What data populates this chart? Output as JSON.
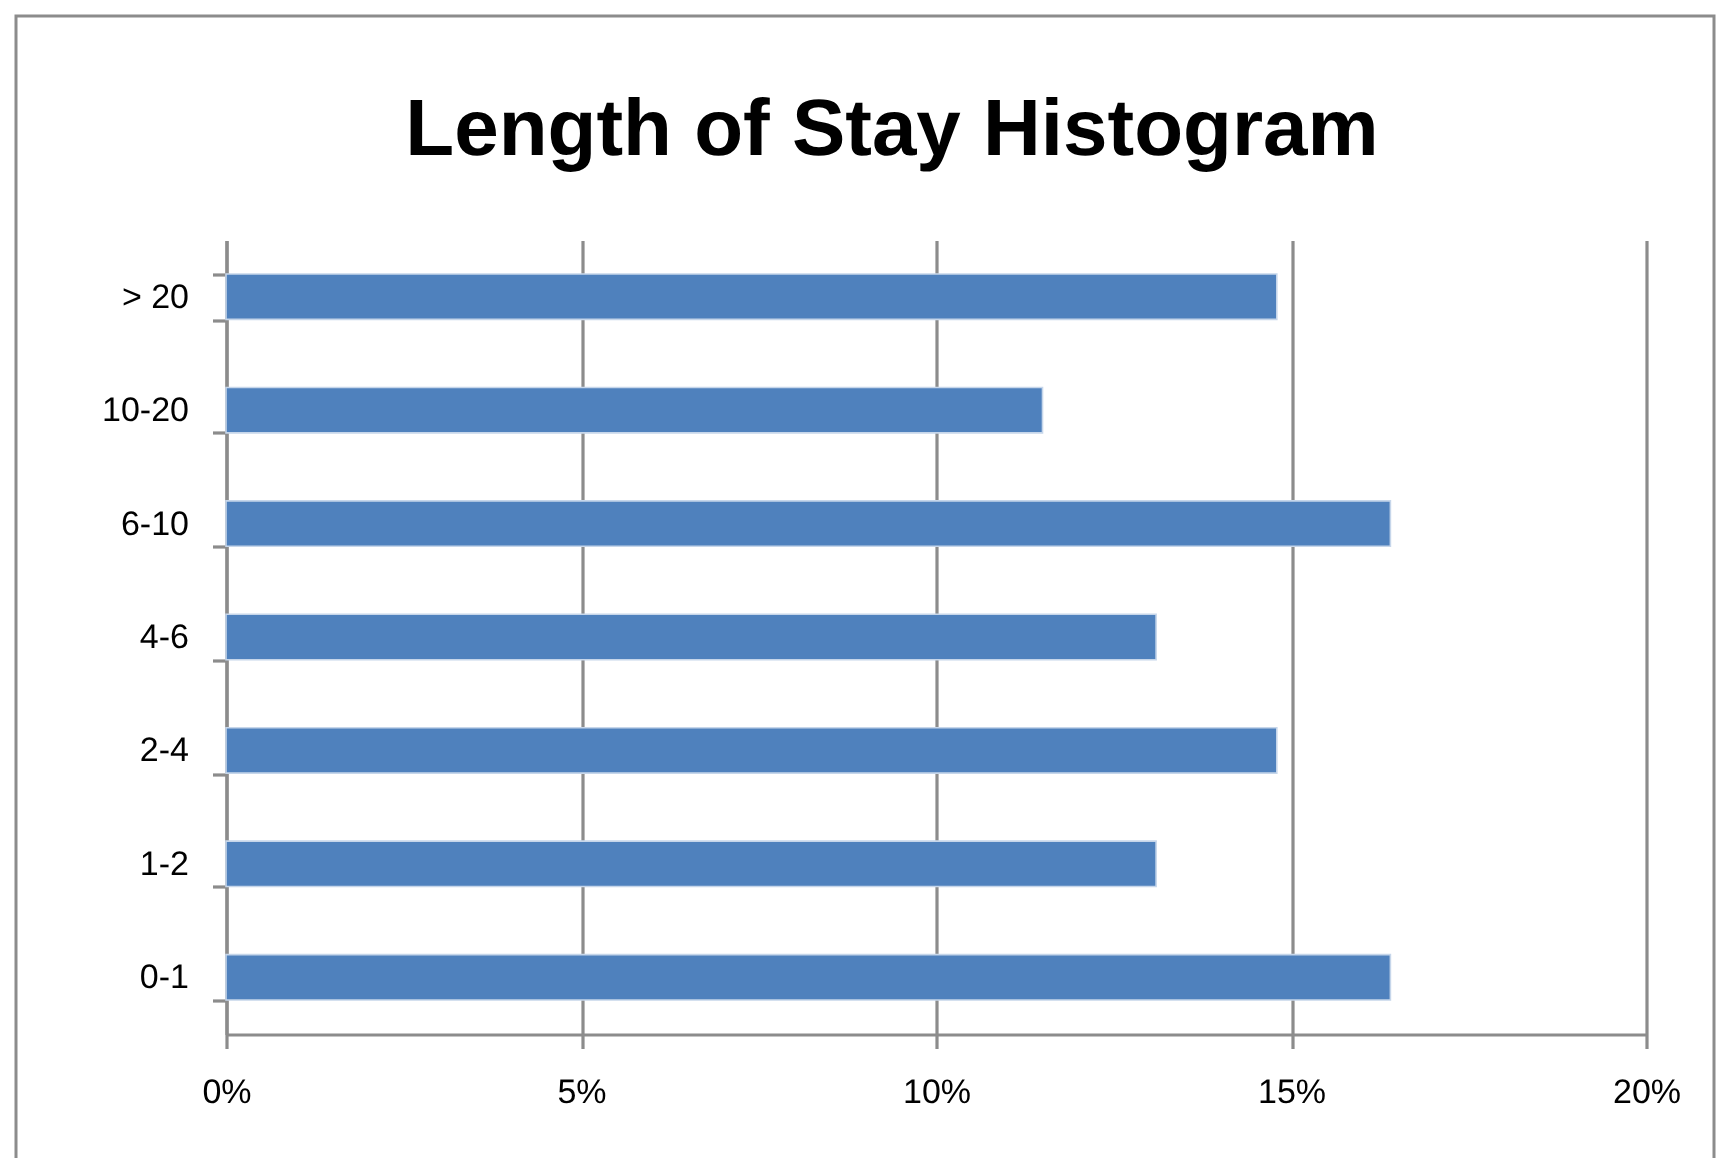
{
  "chart_data": {
    "type": "bar",
    "orientation": "horizontal",
    "title": "Length of Stay Histogram",
    "categories": [
      "> 20",
      "10-20",
      "6-10",
      "4-6",
      "2-4",
      "1-2",
      "0-1"
    ],
    "values": [
      14.8,
      11.5,
      16.4,
      13.1,
      14.8,
      13.1,
      16.4
    ],
    "color": "#4f81bd",
    "xlim": [
      0,
      20
    ],
    "xticks": [
      {
        "value": 0,
        "label": "0%"
      },
      {
        "value": 5,
        "label": "5%"
      },
      {
        "value": 10,
        "label": "10%"
      },
      {
        "value": 15,
        "label": "15%"
      },
      {
        "value": 20,
        "label": "20%"
      }
    ],
    "grid": "x"
  }
}
